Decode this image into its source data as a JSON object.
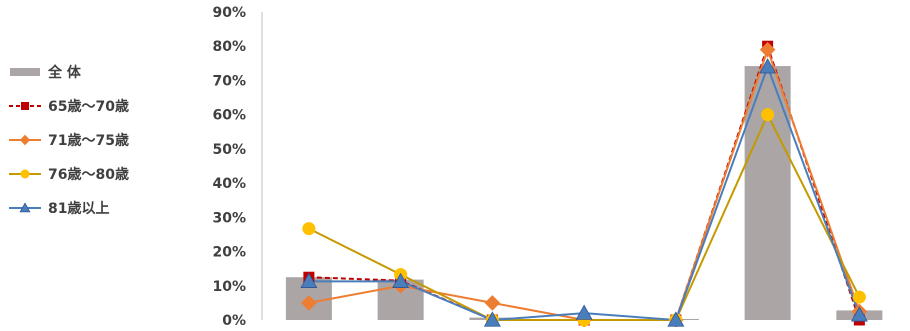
{
  "chart_data": {
    "type": "bar",
    "categories": [
      "",
      "",
      "",
      "",
      "",
      "",
      ""
    ],
    "ylim": [
      0,
      90
    ],
    "ytick_labels": [
      "0%",
      "10%",
      "20%",
      "30%",
      "40%",
      "50%",
      "60%",
      "70%",
      "80%",
      "90%"
    ],
    "grid": false,
    "legend_position": "left",
    "series": [
      {
        "name": "全 体",
        "kind": "bar",
        "color": "#aba5a5",
        "values": [
          12.5,
          11.8,
          0.7,
          0.3,
          0.3,
          74.2,
          2.8
        ]
      },
      {
        "name": "65歳〜70歳",
        "kind": "line",
        "dash": true,
        "marker": "square",
        "color": "#c00000",
        "values": [
          12.5,
          11.5,
          0.0,
          0.0,
          0.0,
          80.0,
          0.0
        ]
      },
      {
        "name": "71歳〜75歳",
        "kind": "line",
        "dash": false,
        "marker": "diamond",
        "color": "#ed7d31",
        "values": [
          5.0,
          10.0,
          5.0,
          0.0,
          0.0,
          79.0,
          2.5
        ]
      },
      {
        "name": "76歳〜80歳",
        "kind": "line",
        "dash": false,
        "marker": "circle",
        "color": "#ffc000",
        "lineColor": "#c49a00",
        "values": [
          26.7,
          13.3,
          0.0,
          0.0,
          0.0,
          60.0,
          6.7
        ]
      },
      {
        "name": "81歳以上",
        "kind": "line",
        "dash": false,
        "marker": "triangle",
        "color": "#4a7ebb",
        "values": [
          11.3,
          11.3,
          0.0,
          2.0,
          0.0,
          74.0,
          1.5
        ]
      }
    ]
  }
}
